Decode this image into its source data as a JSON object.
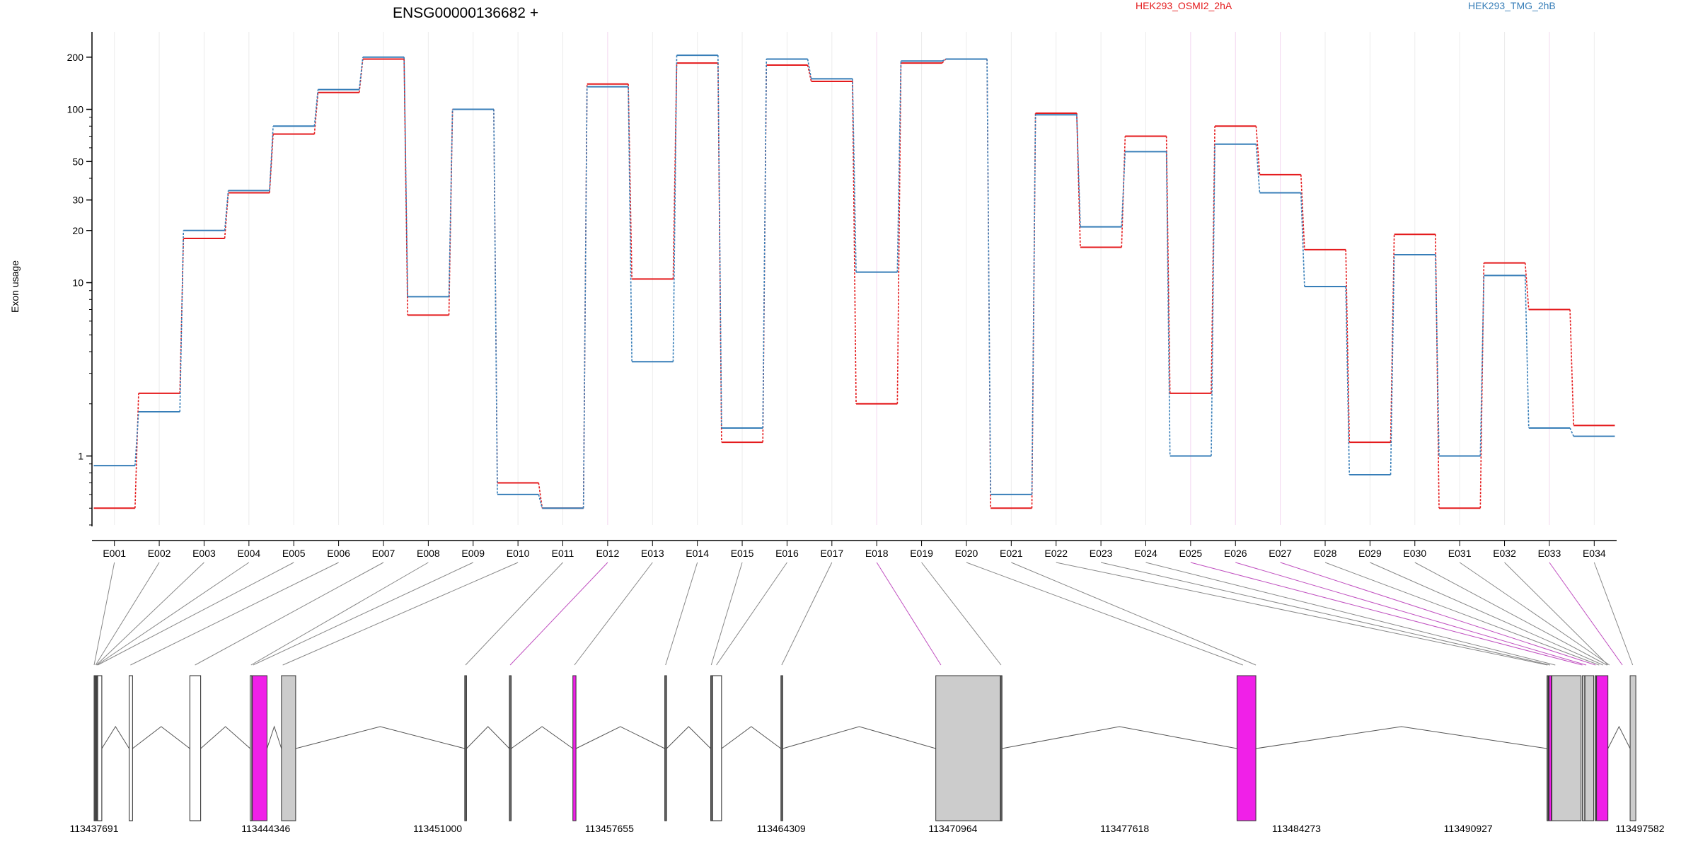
{
  "chart_data": {
    "type": "line",
    "title": "ENSG00000136682 +",
    "ylabel": "Exon usage",
    "yscale": "log",
    "ylim": [
      0.4,
      280
    ],
    "grid": true,
    "legend_position": "top-right",
    "yticks": [
      {
        "value": 1,
        "label": "1"
      },
      {
        "value": 10,
        "label": "10"
      },
      {
        "value": 20,
        "label": "20"
      },
      {
        "value": 30,
        "label": "30"
      },
      {
        "value": 50,
        "label": "50"
      },
      {
        "value": 100,
        "label": "100"
      },
      {
        "value": 200,
        "label": "200"
      }
    ],
    "categories": [
      "E001",
      "E002",
      "E003",
      "E004",
      "E005",
      "E006",
      "E007",
      "E008",
      "E009",
      "E010",
      "E011",
      "E012",
      "E013",
      "E014",
      "E015",
      "E016",
      "E017",
      "E018",
      "E019",
      "E020",
      "E021",
      "E022",
      "E023",
      "E024",
      "E025",
      "E026",
      "E027",
      "E028",
      "E029",
      "E030",
      "E031",
      "E032",
      "E033",
      "E034"
    ],
    "series": [
      {
        "name": "HEK293_OSMI2_2hA",
        "color": "#e41a1c",
        "values": [
          0.5,
          2.3,
          18,
          33,
          72,
          125,
          195,
          6.5,
          100,
          0.7,
          0.5,
          140,
          10.5,
          185,
          1.2,
          180,
          145,
          2,
          185,
          195,
          0.5,
          95,
          16,
          70,
          2.3,
          80,
          42,
          15.5,
          1.2,
          19,
          0.5,
          13,
          7,
          1.5
        ]
      },
      {
        "name": "HEK293_TMG_2hB",
        "color": "#377eb8",
        "values": [
          0.88,
          1.8,
          20,
          34,
          80,
          130,
          200,
          8.3,
          100,
          0.6,
          0.5,
          135,
          3.5,
          205,
          1.45,
          195,
          150,
          11.5,
          190,
          195,
          0.6,
          93,
          21,
          57,
          1,
          63,
          33,
          9.5,
          0.78,
          14.5,
          1,
          11,
          1.45,
          1.3
        ]
      }
    ],
    "genomic_axis": {
      "labels": [
        "113437691",
        "113444346",
        "113451000",
        "113457655",
        "113464309",
        "113470964",
        "113477618",
        "113484273",
        "113490927",
        "113497582"
      ],
      "start": 113437691,
      "end": 113497582
    },
    "highlight_exons": [
      "E012",
      "E018",
      "E025",
      "E026",
      "E027",
      "E033"
    ],
    "colors": {
      "highlight_fill": "#f020e8",
      "highlight_link": "#c050c0",
      "exon_fill": "#cccccc",
      "link": "#888888"
    }
  }
}
